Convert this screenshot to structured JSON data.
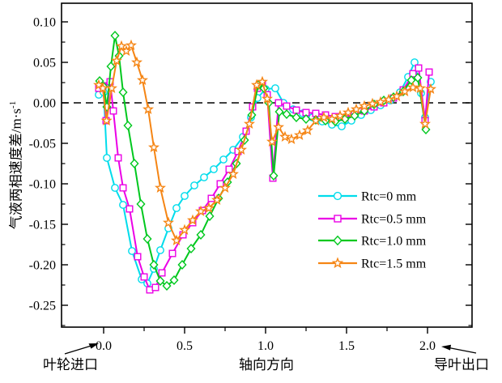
{
  "page": {
    "background": "#ffffff",
    "axis_color": "#000000"
  },
  "labels": {
    "ylabel_base": "气液两相速度差/m·s",
    "ylabel_exponent": "-1",
    "xlabel": "轴向方向",
    "bottom_left": "叶轮进口",
    "bottom_right": "导叶出口"
  },
  "chart_data": {
    "type": "line",
    "title": "",
    "xlabel": "轴向方向",
    "ylabel": "气液两相速度差/(m·s^-1)",
    "xlim": [
      -0.26,
      2.275
    ],
    "ylim": [
      -0.277,
      0.123
    ],
    "x_ticks": [
      0.0,
      0.5,
      1.0,
      1.5,
      2.0
    ],
    "x_minor_ticks": [
      0.25,
      0.75,
      1.25,
      1.75
    ],
    "y_ticks": [
      0.1,
      0.05,
      0.0,
      -0.05,
      -0.1,
      -0.15,
      -0.2,
      -0.25
    ],
    "y_minor_ticks": [
      0.075,
      0.025,
      -0.025,
      -0.075,
      -0.125,
      -0.175,
      -0.225,
      -0.275
    ],
    "grid": false,
    "zero_reference_line": {
      "y": 0.0,
      "style": "dashed",
      "color": "#000000"
    },
    "legend_position": "center-right",
    "axis_annotations": {
      "x_start": "叶轮进口",
      "x_end": "导叶出口"
    },
    "series": [
      {
        "label": "Rtc=0 mm",
        "color": "#00dceb",
        "marker": "circle",
        "points": [
          [
            -0.03,
            0.01
          ],
          [
            0.0,
            0.013
          ],
          [
            0.02,
            -0.068
          ],
          [
            0.07,
            -0.105
          ],
          [
            0.12,
            -0.126
          ],
          [
            0.175,
            -0.183
          ],
          [
            0.235,
            -0.218
          ],
          [
            0.27,
            -0.223
          ],
          [
            0.31,
            -0.205
          ],
          [
            0.35,
            -0.182
          ],
          [
            0.4,
            -0.155
          ],
          [
            0.45,
            -0.13
          ],
          [
            0.5,
            -0.115
          ],
          [
            0.56,
            -0.102
          ],
          [
            0.62,
            -0.092
          ],
          [
            0.68,
            -0.082
          ],
          [
            0.74,
            -0.07
          ],
          [
            0.8,
            -0.058
          ],
          [
            0.86,
            -0.042
          ],
          [
            0.91,
            -0.018
          ],
          [
            0.95,
            0.006
          ],
          [
            1.0,
            0.017
          ],
          [
            1.06,
            0.018
          ],
          [
            1.11,
            0.0
          ],
          [
            1.17,
            -0.008
          ],
          [
            1.23,
            -0.013
          ],
          [
            1.29,
            -0.018
          ],
          [
            1.35,
            -0.023
          ],
          [
            1.41,
            -0.027
          ],
          [
            1.47,
            -0.029
          ],
          [
            1.53,
            -0.022
          ],
          [
            1.59,
            -0.015
          ],
          [
            1.65,
            -0.009
          ],
          [
            1.71,
            -0.003
          ],
          [
            1.77,
            0.003
          ],
          [
            1.83,
            0.013
          ],
          [
            1.88,
            0.032
          ],
          [
            1.92,
            0.05
          ],
          [
            1.96,
            0.012
          ],
          [
            1.985,
            -0.018
          ],
          [
            2.02,
            0.026
          ]
        ]
      },
      {
        "label": "Rtc=0.5 mm",
        "color": "#eb00e6",
        "marker": "square",
        "points": [
          [
            -0.03,
            0.018
          ],
          [
            -0.005,
            0.021
          ],
          [
            0.015,
            -0.022
          ],
          [
            0.04,
            0.026
          ],
          [
            0.06,
            -0.01
          ],
          [
            0.09,
            -0.068
          ],
          [
            0.12,
            -0.105
          ],
          [
            0.16,
            -0.131
          ],
          [
            0.21,
            -0.19
          ],
          [
            0.25,
            -0.215
          ],
          [
            0.285,
            -0.231
          ],
          [
            0.32,
            -0.228
          ],
          [
            0.36,
            -0.21
          ],
          [
            0.425,
            -0.186
          ],
          [
            0.49,
            -0.163
          ],
          [
            0.55,
            -0.148
          ],
          [
            0.61,
            -0.133
          ],
          [
            0.665,
            -0.118
          ],
          [
            0.72,
            -0.1
          ],
          [
            0.775,
            -0.082
          ],
          [
            0.83,
            -0.06
          ],
          [
            0.88,
            -0.035
          ],
          [
            0.92,
            -0.005
          ],
          [
            0.95,
            0.018
          ],
          [
            0.98,
            0.023
          ],
          [
            1.01,
            0.01
          ],
          [
            1.045,
            -0.093
          ],
          [
            1.08,
            0.0
          ],
          [
            1.13,
            -0.004
          ],
          [
            1.19,
            -0.009
          ],
          [
            1.25,
            -0.012
          ],
          [
            1.31,
            -0.013
          ],
          [
            1.37,
            -0.015
          ],
          [
            1.43,
            -0.017
          ],
          [
            1.49,
            -0.018
          ],
          [
            1.55,
            -0.014
          ],
          [
            1.61,
            -0.01
          ],
          [
            1.67,
            -0.005
          ],
          [
            1.73,
            0.0
          ],
          [
            1.79,
            0.006
          ],
          [
            1.85,
            0.016
          ],
          [
            1.91,
            0.036
          ],
          [
            1.945,
            0.043
          ],
          [
            1.985,
            -0.022
          ],
          [
            2.01,
            0.038
          ]
        ]
      },
      {
        "label": "Rtc=1.0 mm",
        "color": "#00c81e",
        "marker": "diamond",
        "points": [
          [
            -0.025,
            0.027
          ],
          [
            0.0,
            0.02
          ],
          [
            0.02,
            -0.005
          ],
          [
            0.045,
            0.045
          ],
          [
            0.07,
            0.083
          ],
          [
            0.095,
            0.058
          ],
          [
            0.12,
            0.013
          ],
          [
            0.15,
            -0.028
          ],
          [
            0.19,
            -0.075
          ],
          [
            0.23,
            -0.125
          ],
          [
            0.27,
            -0.168
          ],
          [
            0.31,
            -0.2
          ],
          [
            0.35,
            -0.22
          ],
          [
            0.39,
            -0.226
          ],
          [
            0.435,
            -0.219
          ],
          [
            0.485,
            -0.2
          ],
          [
            0.54,
            -0.18
          ],
          [
            0.6,
            -0.163
          ],
          [
            0.655,
            -0.14
          ],
          [
            0.71,
            -0.118
          ],
          [
            0.765,
            -0.098
          ],
          [
            0.82,
            -0.075
          ],
          [
            0.87,
            -0.046
          ],
          [
            0.915,
            -0.015
          ],
          [
            0.955,
            0.022
          ],
          [
            0.99,
            0.018
          ],
          [
            1.02,
            0.0
          ],
          [
            1.05,
            -0.09
          ],
          [
            1.085,
            -0.011
          ],
          [
            1.13,
            -0.014
          ],
          [
            1.19,
            -0.018
          ],
          [
            1.25,
            -0.02
          ],
          [
            1.31,
            -0.021
          ],
          [
            1.37,
            -0.022
          ],
          [
            1.43,
            -0.023
          ],
          [
            1.49,
            -0.02
          ],
          [
            1.55,
            -0.016
          ],
          [
            1.61,
            -0.01
          ],
          [
            1.67,
            -0.002
          ],
          [
            1.73,
            0.003
          ],
          [
            1.79,
            0.007
          ],
          [
            1.85,
            0.014
          ],
          [
            1.9,
            0.028
          ],
          [
            1.94,
            0.031
          ],
          [
            1.99,
            -0.033
          ]
        ]
      },
      {
        "label": "Rtc=1.5 mm",
        "color": "#f58514",
        "marker": "star",
        "points": [
          [
            -0.03,
            0.022
          ],
          [
            -0.005,
            0.018
          ],
          [
            0.018,
            -0.022
          ],
          [
            0.05,
            0.018
          ],
          [
            0.08,
            0.052
          ],
          [
            0.11,
            0.07
          ],
          [
            0.14,
            0.064
          ],
          [
            0.17,
            0.071
          ],
          [
            0.205,
            0.05
          ],
          [
            0.24,
            0.028
          ],
          [
            0.275,
            -0.008
          ],
          [
            0.31,
            -0.055
          ],
          [
            0.35,
            -0.105
          ],
          [
            0.4,
            -0.148
          ],
          [
            0.45,
            -0.17
          ],
          [
            0.5,
            -0.157
          ],
          [
            0.55,
            -0.145
          ],
          [
            0.6,
            -0.134
          ],
          [
            0.65,
            -0.13
          ],
          [
            0.7,
            -0.12
          ],
          [
            0.75,
            -0.105
          ],
          [
            0.8,
            -0.088
          ],
          [
            0.85,
            -0.058
          ],
          [
            0.9,
            -0.026
          ],
          [
            0.945,
            0.022
          ],
          [
            0.98,
            0.026
          ],
          [
            1.01,
            0.005
          ],
          [
            1.04,
            -0.048
          ],
          [
            1.08,
            -0.03
          ],
          [
            1.12,
            -0.042
          ],
          [
            1.16,
            -0.045
          ],
          [
            1.21,
            -0.04
          ],
          [
            1.26,
            -0.034
          ],
          [
            1.31,
            -0.022
          ],
          [
            1.36,
            -0.018
          ],
          [
            1.41,
            -0.02
          ],
          [
            1.46,
            -0.016
          ],
          [
            1.51,
            -0.012
          ],
          [
            1.56,
            -0.008
          ],
          [
            1.61,
            -0.004
          ],
          [
            1.66,
            -0.001
          ],
          [
            1.71,
            0.001
          ],
          [
            1.76,
            0.004
          ],
          [
            1.81,
            0.008
          ],
          [
            1.86,
            0.014
          ],
          [
            1.91,
            0.019
          ],
          [
            1.955,
            0.018
          ],
          [
            1.985,
            -0.026
          ],
          [
            2.02,
            0.017
          ]
        ]
      }
    ]
  }
}
